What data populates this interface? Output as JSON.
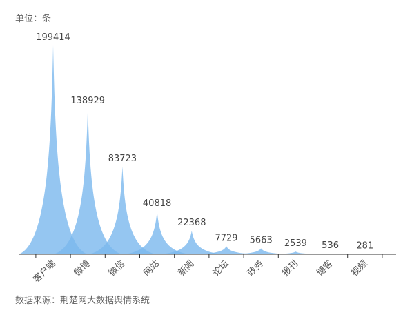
{
  "header": {
    "unit_label": "单位：条"
  },
  "footer": {
    "source_label": "数据来源：荆楚网大数据舆情系统"
  },
  "colors": {
    "fill": "#7ab8ee",
    "axis": "#333333"
  },
  "chart_data": {
    "type": "area",
    "style": "pictorial-spike",
    "categories": [
      "客户端",
      "微博",
      "微信",
      "网站",
      "新闻",
      "论坛",
      "政务",
      "报刊",
      "博客",
      "视频"
    ],
    "values": [
      199414,
      138929,
      83723,
      40818,
      22368,
      7729,
      5663,
      2539,
      536,
      281
    ],
    "data_labels": [
      "199414",
      "138929",
      "83723",
      "40818",
      "22368",
      "7729",
      "5663",
      "2539",
      "536",
      "281"
    ],
    "ylim": [
      0,
      199414
    ],
    "grid": false,
    "legend": "none"
  }
}
